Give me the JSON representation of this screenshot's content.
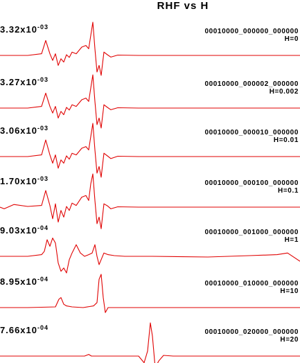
{
  "chart_data": {
    "type": "line",
    "title": "RHF vs H",
    "line_color": "#e00000",
    "traces": [
      {
        "amplitude_mantissa": "3.32x10",
        "amplitude_exponent": "-03",
        "name": "00010000_000000_000000",
        "param": "H=0",
        "x": [
          0,
          40,
          60,
          66,
          72,
          76,
          80,
          84,
          88,
          92,
          96,
          100,
          104,
          110,
          118,
          124,
          128,
          131,
          134,
          137,
          140,
          143,
          146,
          150,
          155,
          160,
          170,
          200,
          300,
          433
        ],
        "y": [
          0,
          0,
          0.05,
          0.45,
          0.05,
          -0.15,
          0.05,
          -0.3,
          -0.1,
          -0.2,
          0.02,
          -0.06,
          0.1,
          0.05,
          0.25,
          0.3,
          0.2,
          0.6,
          1.0,
          0.2,
          -0.5,
          -0.3,
          -0.6,
          0.1,
          0.02,
          -0.05,
          0.01,
          0,
          0,
          0
        ]
      },
      {
        "amplitude_mantissa": "3.27x10",
        "amplitude_exponent": "-03",
        "name": "00010000_000002_000000",
        "param": "H=0.002",
        "x": [
          0,
          40,
          60,
          66,
          72,
          76,
          80,
          84,
          88,
          92,
          96,
          100,
          104,
          110,
          118,
          124,
          128,
          131,
          134,
          137,
          140,
          143,
          146,
          150,
          155,
          160,
          170,
          200,
          300,
          433
        ],
        "y": [
          0,
          0,
          0.05,
          0.45,
          0.05,
          -0.15,
          0.05,
          -0.3,
          -0.1,
          -0.2,
          0.02,
          -0.06,
          0.1,
          0.05,
          0.25,
          0.3,
          0.2,
          0.6,
          1.0,
          0.2,
          -0.5,
          -0.3,
          -0.6,
          0.1,
          0.02,
          -0.05,
          0.01,
          0,
          0,
          0
        ]
      },
      {
        "amplitude_mantissa": "3.06x10",
        "amplitude_exponent": "-03",
        "name": "00010000_000010_000000",
        "param": "H=0.01",
        "x": [
          0,
          40,
          60,
          66,
          72,
          76,
          80,
          84,
          88,
          92,
          96,
          100,
          104,
          110,
          118,
          124,
          128,
          131,
          134,
          137,
          140,
          143,
          146,
          150,
          155,
          160,
          170,
          200,
          300,
          433
        ],
        "y": [
          0,
          0,
          0.05,
          0.5,
          0.05,
          -0.2,
          0.05,
          -0.35,
          -0.1,
          -0.2,
          0.02,
          -0.08,
          0.1,
          0.05,
          0.25,
          0.3,
          0.2,
          0.6,
          1.0,
          0.2,
          -0.5,
          -0.3,
          -0.62,
          0.1,
          0.02,
          -0.06,
          0.01,
          0,
          0,
          0
        ]
      },
      {
        "amplitude_mantissa": "1.70x10",
        "amplitude_exponent": "-03",
        "name": "00010000_000100_000000",
        "param": "H=0.1",
        "x": [
          0,
          6,
          20,
          40,
          60,
          66,
          72,
          76,
          80,
          84,
          88,
          92,
          96,
          100,
          104,
          110,
          118,
          124,
          128,
          131,
          134,
          137,
          140,
          143,
          146,
          150,
          155,
          160,
          170,
          200,
          260,
          300,
          433
        ],
        "y": [
          0,
          -0.05,
          0.08,
          0.02,
          0.05,
          0.5,
          0.05,
          -0.35,
          0.1,
          -0.45,
          -0.1,
          -0.3,
          0.02,
          -0.1,
          0.12,
          0.05,
          0.3,
          0.35,
          0.2,
          0.7,
          1.0,
          0.2,
          -0.5,
          -0.3,
          -0.65,
          0.1,
          0.04,
          -0.05,
          0.01,
          0.0,
          0.0,
          0,
          0
        ]
      },
      {
        "amplitude_mantissa": "9.03x10",
        "amplitude_exponent": "-04",
        "name": "00010000_001000_000000",
        "param": "H=1",
        "x": [
          0,
          40,
          60,
          64,
          68,
          72,
          76,
          80,
          84,
          88,
          92,
          96,
          100,
          104,
          110,
          116,
          122,
          128,
          133,
          137,
          140,
          143,
          146,
          150,
          156,
          165,
          180,
          220,
          300,
          360,
          400,
          415,
          433
        ],
        "y": [
          0,
          0,
          0.05,
          0.15,
          0.5,
          0.3,
          0.55,
          0.4,
          -0.2,
          -0.45,
          -0.35,
          -0.5,
          -0.1,
          0.1,
          0.35,
          0.1,
          0.0,
          0.05,
          0.1,
          0.35,
          0.0,
          -0.25,
          -0.1,
          0.1,
          0.05,
          0.02,
          0.0,
          0.0,
          -0.02,
          0.02,
          0.05,
          0.1,
          -0.15
        ]
      },
      {
        "amplitude_mantissa": "8.95x10",
        "amplitude_exponent": "-04",
        "name": "00010000_010000_000000",
        "param": "H=10",
        "x": [
          0,
          40,
          80,
          85,
          88,
          92,
          96,
          104,
          120,
          135,
          140,
          143,
          146,
          149,
          152,
          156,
          170,
          433
        ],
        "y": [
          0,
          0,
          0.02,
          0.25,
          0.3,
          0.1,
          0.05,
          0.02,
          0.0,
          0.05,
          0.15,
          0.85,
          1.0,
          0.3,
          -0.15,
          0.0,
          0.0,
          0
        ]
      },
      {
        "amplitude_mantissa": "7.66x10",
        "amplitude_exponent": "-04",
        "name": "00010000_020000_000000",
        "param": "H=20",
        "x": [
          0,
          100,
          122,
          128,
          132,
          140,
          200,
          208,
          213,
          217,
          220,
          224,
          229,
          236,
          250,
          433
        ],
        "y": [
          0,
          0,
          0.0,
          0.05,
          0.0,
          0.0,
          0.0,
          -0.2,
          0.15,
          1.0,
          0.6,
          -0.35,
          -0.15,
          0.02,
          0.0,
          0
        ]
      }
    ],
    "xlabel": "",
    "ylabel": "",
    "grid": false
  }
}
